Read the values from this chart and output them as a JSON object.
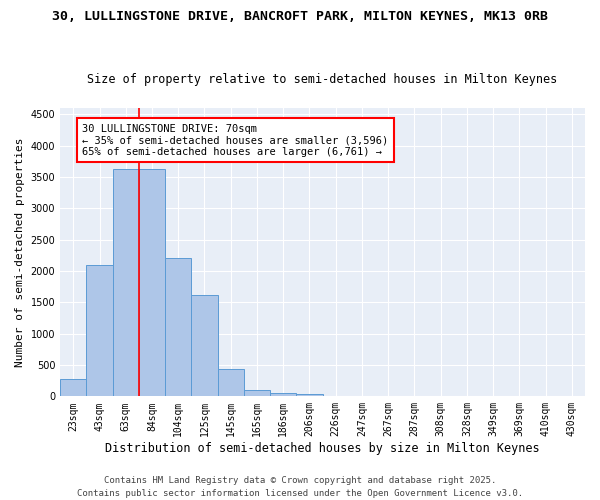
{
  "title_line1": "30, LULLINGSTONE DRIVE, BANCROFT PARK, MILTON KEYNES, MK13 0RB",
  "title_line2": "Size of property relative to semi-detached houses in Milton Keynes",
  "xlabel": "Distribution of semi-detached houses by size in Milton Keynes",
  "ylabel": "Number of semi-detached properties",
  "bar_values": [
    270,
    2100,
    3620,
    3620,
    2200,
    1620,
    430,
    100,
    55,
    40,
    0,
    0,
    0,
    0,
    0,
    0,
    0,
    0,
    0,
    0
  ],
  "bar_labels": [
    "23sqm",
    "43sqm",
    "63sqm",
    "84sqm",
    "104sqm",
    "125sqm",
    "145sqm",
    "165sqm",
    "186sqm",
    "206sqm",
    "226sqm",
    "247sqm",
    "267sqm",
    "287sqm",
    "308sqm",
    "328sqm",
    "349sqm",
    "369sqm",
    "410sqm",
    "430sqm"
  ],
  "bar_color": "#aec6e8",
  "bar_edge_color": "#5b9bd5",
  "ylim": [
    0,
    4600
  ],
  "yticks": [
    0,
    500,
    1000,
    1500,
    2000,
    2500,
    3000,
    3500,
    4000,
    4500
  ],
  "annotation_text": "30 LULLINGSTONE DRIVE: 70sqm\n← 35% of semi-detached houses are smaller (3,596)\n65% of semi-detached houses are larger (6,761) →",
  "red_line_x": 2.5,
  "background_color": "#e8eef7",
  "grid_color": "#ffffff",
  "footer_text": "Contains HM Land Registry data © Crown copyright and database right 2025.\nContains public sector information licensed under the Open Government Licence v3.0.",
  "title_fontsize": 9.5,
  "subtitle_fontsize": 8.5,
  "tick_fontsize": 7,
  "ylabel_fontsize": 8,
  "xlabel_fontsize": 8.5,
  "annotation_fontsize": 7.5,
  "footer_fontsize": 6.5
}
